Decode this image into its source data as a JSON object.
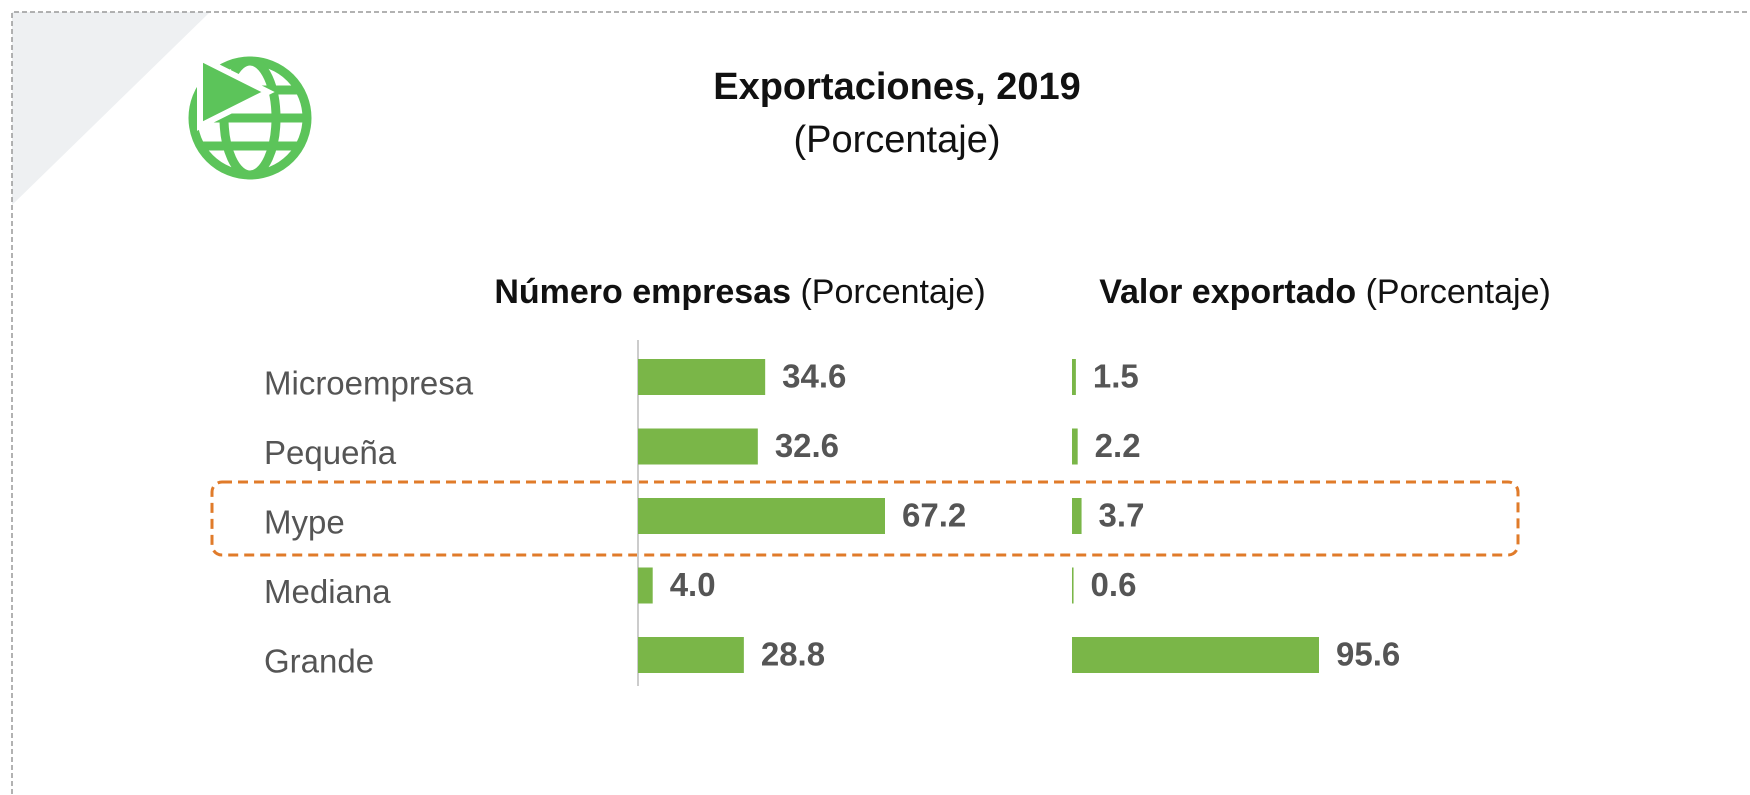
{
  "title": "Exportaciones, 2019",
  "subtitle": "(Porcentaje)",
  "chart_data": {
    "type": "bar",
    "orientation": "horizontal",
    "categories": [
      "Microempresa",
      "Pequeña",
      "Mype",
      "Mediana",
      "Grande"
    ],
    "series": [
      {
        "name": "Número empresas",
        "unit": "(Porcentaje)",
        "color": "#7ab648",
        "values": [
          34.6,
          32.6,
          67.2,
          4.0,
          28.8
        ],
        "value_labels": [
          "34.6",
          "32.6",
          "67.2",
          "4.0",
          "28.8"
        ]
      },
      {
        "name": "Valor exportado",
        "unit": "(Porcentaje)",
        "color": "#7ab648",
        "values": [
          1.5,
          2.2,
          3.7,
          0.6,
          95.6
        ],
        "value_labels": [
          "1.5",
          "2.2",
          "3.7",
          "0.6",
          "95.6"
        ]
      }
    ]
  }
}
